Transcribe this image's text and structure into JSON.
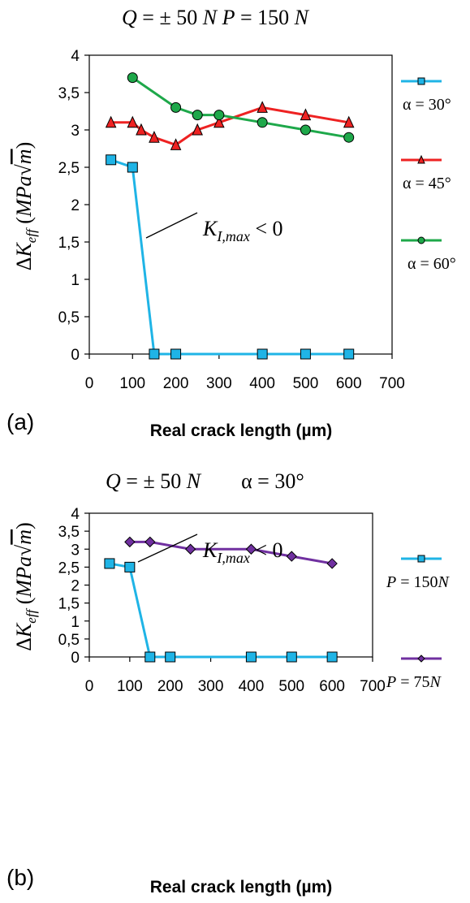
{
  "chart_data": [
    {
      "type": "line",
      "panel": "(a)",
      "title": "Q = ± 50 N   P = 150 N",
      "xlabel": "Real crack length (µm)",
      "ylabel": "ΔK_eff (MPa√m)",
      "xlim": [
        0,
        700
      ],
      "ylim": [
        0,
        4
      ],
      "xticks": [
        "0",
        "100",
        "200",
        "300",
        "400",
        "500",
        "600",
        "700"
      ],
      "yticks": [
        "0",
        "0,5",
        "1",
        "1,5",
        "2",
        "2,5",
        "3",
        "3,5",
        "4"
      ],
      "grid": false,
      "legend_position": "right",
      "annotation": "K_I,max < 0",
      "series": [
        {
          "name": "α = 30°",
          "color": "#1fb4e6",
          "marker": "square",
          "x": [
            50,
            100,
            150,
            200,
            400,
            500,
            600
          ],
          "y": [
            2.6,
            2.5,
            0,
            0,
            0,
            0,
            0
          ]
        },
        {
          "name": "α = 45°",
          "color": "#ee2222",
          "marker": "triangle",
          "x": [
            50,
            100,
            120,
            150,
            200,
            250,
            300,
            400,
            500,
            600
          ],
          "y": [
            3.1,
            3.1,
            3.0,
            2.9,
            2.8,
            3.0,
            3.1,
            3.3,
            3.2,
            3.1
          ]
        },
        {
          "name": "α = 60°",
          "color": "#1ea84a",
          "marker": "circle",
          "x": [
            100,
            200,
            250,
            300,
            400,
            500,
            600
          ],
          "y": [
            3.7,
            3.3,
            3.2,
            3.2,
            3.1,
            3.0,
            2.9
          ]
        }
      ]
    },
    {
      "type": "line",
      "panel": "(b)",
      "title": "Q = ± 50 N   α = 30°",
      "xlabel": "Real crack length (µm)",
      "ylabel": "ΔK_eff (MPa√m)",
      "xlim": [
        0,
        700
      ],
      "ylim": [
        0,
        4
      ],
      "xticks": [
        "0",
        "100",
        "200",
        "300",
        "400",
        "500",
        "600",
        "700"
      ],
      "yticks": [
        "0",
        "0,5",
        "1",
        "1,5",
        "2",
        "2,5",
        "3",
        "3,5",
        "4"
      ],
      "grid": false,
      "legend_position": "right",
      "annotation": "K_I,max < 0",
      "series": [
        {
          "name": "P = 150N",
          "color": "#1fb4e6",
          "marker": "square",
          "x": [
            50,
            100,
            150,
            200,
            400,
            500,
            600
          ],
          "y": [
            2.6,
            2.5,
            0,
            0,
            0,
            0,
            0
          ]
        },
        {
          "name": "P = 75N",
          "color": "#7030a0",
          "marker": "diamond",
          "x": [
            100,
            150,
            250,
            400,
            500,
            600
          ],
          "y": [
            3.2,
            3.2,
            3.0,
            3.0,
            2.8,
            2.6
          ]
        }
      ]
    }
  ]
}
